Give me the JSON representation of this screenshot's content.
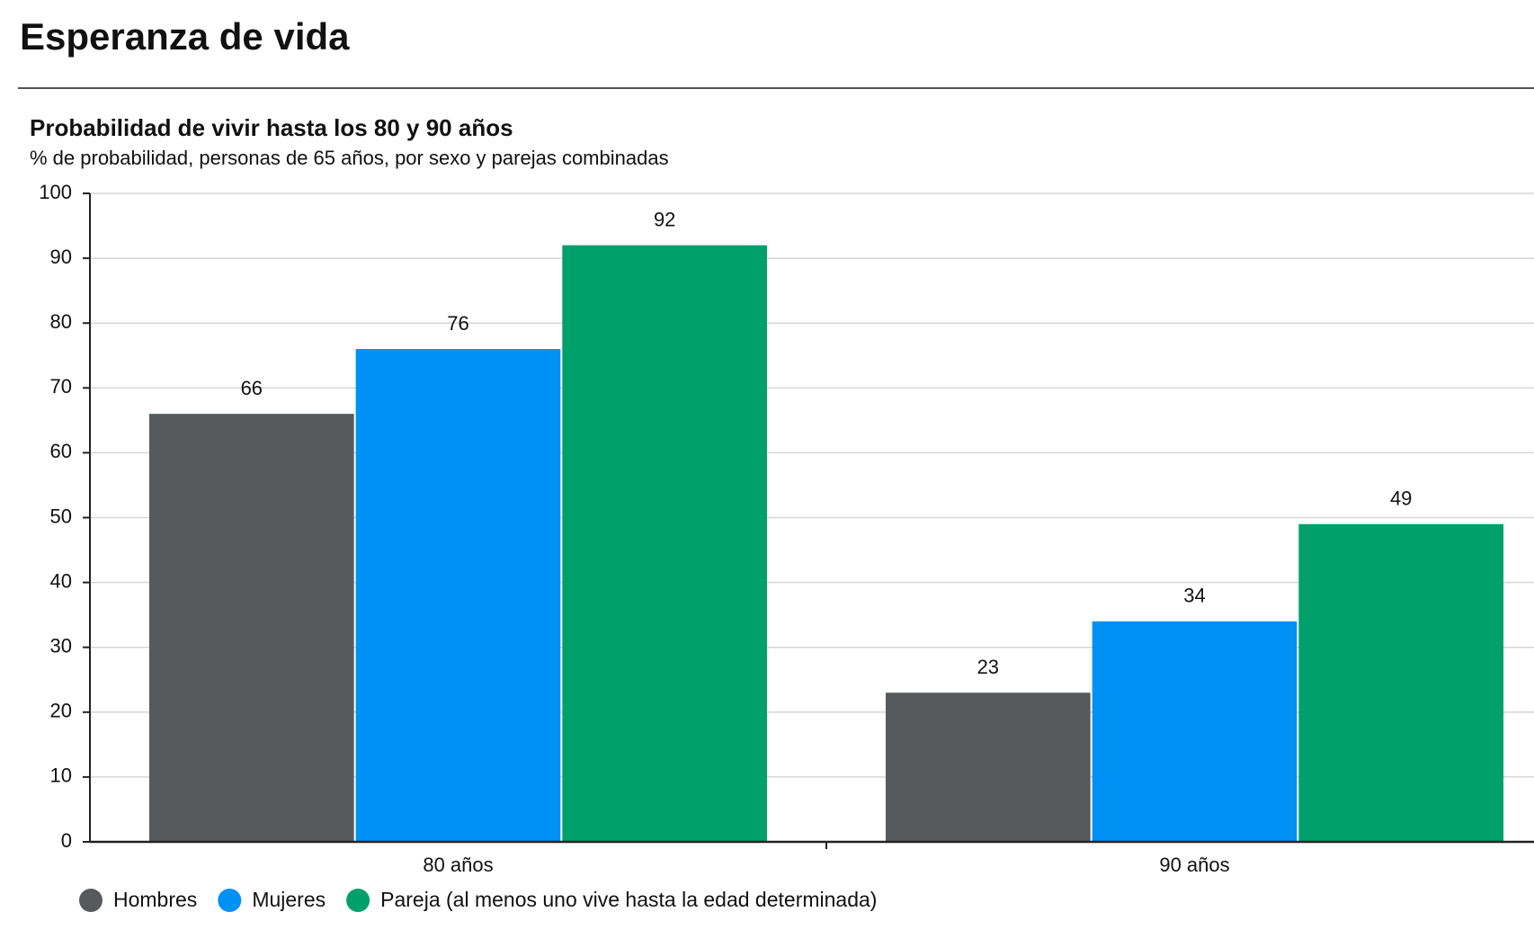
{
  "page_title": "Esperanza de vida",
  "chart_data": {
    "type": "bar",
    "title": "Probabilidad de vivir hasta los 80 y 90 años",
    "subtitle": "% de probabilidad, personas de 65 años, por sexo y parejas combinadas",
    "categories": [
      "80 años",
      "90 años"
    ],
    "series": [
      {
        "name": "Hombres",
        "color": "#575a5d",
        "values": [
          66,
          23
        ]
      },
      {
        "name": "Mujeres",
        "color": "#0091f5",
        "values": [
          76,
          34
        ]
      },
      {
        "name": "Pareja (al menos uno vive hasta la edad determinada)",
        "color": "#00a06b",
        "values": [
          92,
          49
        ]
      }
    ],
    "ylim": [
      0,
      100
    ],
    "yticks": [
      0,
      10,
      20,
      30,
      40,
      50,
      60,
      70,
      80,
      90,
      100
    ],
    "grid": true,
    "legend": "bottom"
  }
}
